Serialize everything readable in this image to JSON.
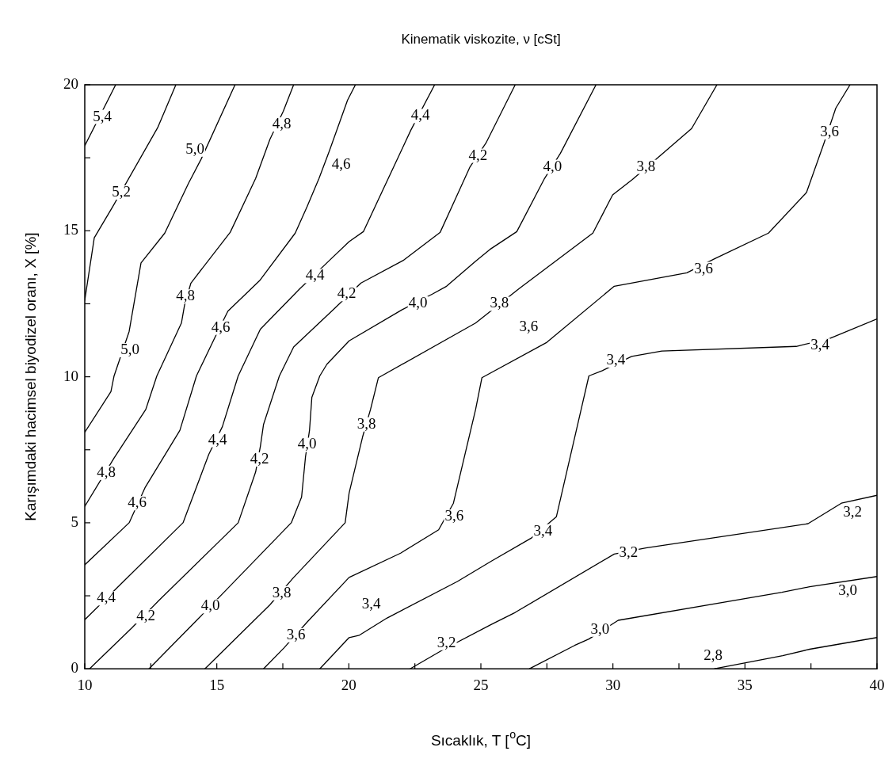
{
  "chart_data": {
    "type": "line",
    "title": "Kinematik viskozite, ν [cSt]",
    "xlabel": "Sıcaklık, T [$^{o}$C]",
    "ylabel": "Karışımdaki hacimsel biyodizel oranı, X [%]",
    "xlim": [
      10,
      40
    ],
    "ylim": [
      0,
      20
    ],
    "xticks": [
      10,
      {
        "value": 12.5,
        "label": null
      },
      15,
      {
        "value": 17.5,
        "label": null
      },
      20,
      {
        "value": 22.5,
        "label": null
      },
      25,
      {
        "value": 27.5,
        "label": null
      },
      30,
      {
        "value": 32.5,
        "label": null
      },
      35,
      {
        "value": 37.5,
        "label": null
      },
      40
    ],
    "yticks": [
      0,
      {
        "value": 2.5,
        "label": null
      },
      5,
      {
        "value": 7.5,
        "label": null
      },
      10,
      {
        "value": 12.5,
        "label": null
      },
      15,
      {
        "value": 17.5,
        "label": null
      },
      20
    ],
    "series": [
      {
        "color": "#000000",
        "x": [
          10,
          11.17
        ],
        "values": [
          17.91,
          20
        ]
      },
      {
        "color": "#000000",
        "x": [
          10,
          10.36,
          11.08,
          12.76,
          13.45
        ],
        "values": [
          12.62,
          14.76,
          15.86,
          18.53,
          20
        ]
      },
      {
        "color": "#000000",
        "x": [
          10,
          10.99,
          11.11,
          11.68,
          12.13,
          13.03,
          13.93,
          14.41,
          15.69
        ],
        "values": [
          8.1,
          9.49,
          10.03,
          11.55,
          13.9,
          14.92,
          16.63,
          17.46,
          20
        ]
      },
      {
        "color": "#000000",
        "x": [
          10,
          11.11,
          12.31,
          12.73,
          13.66,
          13.78,
          14.02,
          15.51,
          16.47,
          17.01,
          17.52,
          17.91
        ],
        "values": [
          5.56,
          7.22,
          8.88,
          10.03,
          11.84,
          12.46,
          13.21,
          14.95,
          16.79,
          18.13,
          19.1,
          20
        ]
      },
      {
        "color": "#000000",
        "x": [
          10,
          11.68,
          12.28,
          13.6,
          14.23,
          14.91,
          15.42,
          16.62,
          17.97,
          18.42,
          18.87,
          19.26,
          19.95,
          20.25
        ],
        "values": [
          3.56,
          5.0,
          6.2,
          8.16,
          10.03,
          11.31,
          12.25,
          13.29,
          14.92,
          15.83,
          16.79,
          17.73,
          19.47,
          20
        ]
      },
      {
        "color": "#000000",
        "x": [
          10,
          11.32,
          13.72,
          14.7,
          15.21,
          15.81,
          16.65,
          18.15,
          19.26,
          20.01,
          20.55,
          22.35,
          23.25
        ],
        "values": [
          1.68,
          2.86,
          5.0,
          7.35,
          8.29,
          10.03,
          11.63,
          13.02,
          13.98,
          14.63,
          14.97,
          18.45,
          20
        ]
      },
      {
        "color": "#000000",
        "x": [
          10.18,
          11.77,
          12.82,
          15.81,
          16.47,
          16.65,
          16.77,
          17.37,
          17.91,
          19.47,
          20.46,
          22.05,
          23.46,
          24.59,
          25.19,
          26.3
        ],
        "values": [
          0,
          1.39,
          2.35,
          5.0,
          6.74,
          7.62,
          8.37,
          10.03,
          11.02,
          12.35,
          13.21,
          13.98,
          14.95,
          17.19,
          18.0,
          20
        ]
      },
      {
        "color": "#000000",
        "x": [
          12.43,
          14.26,
          15.27,
          17.82,
          18.21,
          18.36,
          18.51,
          18.6,
          18.9,
          19.17,
          20.01,
          22.02,
          23.16,
          23.7,
          24.8,
          25.34,
          26.36,
          27.41,
          28.01,
          29.36
        ],
        "values": [
          0,
          1.68,
          2.62,
          5.0,
          5.88,
          7.27,
          8.16,
          9.3,
          10.03,
          10.43,
          11.23,
          12.3,
          12.83,
          13.1,
          13.96,
          14.36,
          14.97,
          16.79,
          17.65,
          20
        ]
      },
      {
        "color": "#000000",
        "x": [
          14.55,
          17.01,
          17.91,
          19.86,
          20.01,
          20.52,
          20.82,
          21.12,
          24.8,
          26.45,
          29.24,
          29.99,
          30.74,
          31.79,
          32.98,
          33.94
        ],
        "values": [
          0,
          2.19,
          3.13,
          5.0,
          6.02,
          7.94,
          8.88,
          9.97,
          11.84,
          13.02,
          14.92,
          16.23,
          16.76,
          17.57,
          18.5,
          20
        ]
      },
      {
        "color": "#000000",
        "x": [
          16.77,
          17.55,
          18.42,
          20.01,
          21.96,
          23.4,
          23.96,
          24.8,
          25.04,
          27.5,
          30.05,
          32.8,
          33.85,
          35.89,
          37.33,
          37.99,
          38.44,
          38.98
        ],
        "values": [
          0,
          0.72,
          1.6,
          3.13,
          3.96,
          4.76,
          5.67,
          8.88,
          9.97,
          11.18,
          13.1,
          13.56,
          14.04,
          14.92,
          16.31,
          17.99,
          19.2,
          20
        ]
      },
      {
        "color": "#000000",
        "x": [
          18.9,
          20.01,
          20.4,
          21.45,
          24.11,
          25.4,
          26.9,
          27.86,
          29.09,
          29.6,
          30.71,
          31.85,
          36.94,
          38.2,
          40
        ],
        "values": [
          0,
          1.07,
          1.15,
          1.74,
          2.99,
          3.69,
          4.47,
          5.21,
          10.03,
          10.21,
          10.7,
          10.88,
          11.04,
          11.31,
          11.98
        ]
      },
      {
        "color": "#000000",
        "x": [
          22.32,
          23.6,
          25.4,
          26.3,
          30.05,
          31.25,
          37.39,
          38.65,
          40
        ],
        "values": [
          0,
          0.67,
          1.52,
          1.93,
          3.93,
          4.14,
          4.97,
          5.67,
          5.94
        ]
      },
      {
        "color": "#000000",
        "x": [
          26.84,
          28.55,
          29.09,
          30.2,
          36.4,
          37.45,
          40
        ],
        "values": [
          0,
          0.8,
          1.02,
          1.66,
          2.62,
          2.81,
          3.16
        ]
      },
      {
        "color": "#000000",
        "x": [
          33.85,
          36.43,
          37.45,
          40
        ],
        "values": [
          0,
          0.45,
          0.67,
          1.07
        ]
      }
    ],
    "annotations": [
      {
        "text": "5,4",
        "x": 10.66,
        "y": 18.9
      },
      {
        "text": "5,2",
        "x": 11.38,
        "y": 16.31
      },
      {
        "text": "5,0",
        "x": 14.17,
        "y": 17.78
      },
      {
        "text": "4,8",
        "x": 17.46,
        "y": 18.64
      },
      {
        "text": "4,6",
        "x": 19.71,
        "y": 17.25
      },
      {
        "text": "4,4",
        "x": 22.71,
        "y": 18.93
      },
      {
        "text": "4,2",
        "x": 24.89,
        "y": 17.57
      },
      {
        "text": "4,0",
        "x": 27.71,
        "y": 17.19
      },
      {
        "text": "3,8",
        "x": 31.25,
        "y": 17.19
      },
      {
        "text": "3,6",
        "x": 38.2,
        "y": 18.37
      },
      {
        "text": "4,8",
        "x": 13.81,
        "y": 12.75
      },
      {
        "text": "4,6",
        "x": 15.15,
        "y": 11.68
      },
      {
        "text": "4,4",
        "x": 18.72,
        "y": 13.45
      },
      {
        "text": "4,2",
        "x": 19.92,
        "y": 12.83
      },
      {
        "text": "4,0",
        "x": 22.62,
        "y": 12.51
      },
      {
        "text": "3,8",
        "x": 25.7,
        "y": 12.5
      },
      {
        "text": "3,6",
        "x": 33.43,
        "y": 13.69
      },
      {
        "text": "5,0",
        "x": 11.71,
        "y": 10.91
      },
      {
        "text": "3,6",
        "x": 26.81,
        "y": 11.71
      },
      {
        "text": "3,4",
        "x": 30.11,
        "y": 10.56
      },
      {
        "text": "3,4",
        "x": 37.84,
        "y": 11.07
      },
      {
        "text": "3,8",
        "x": 20.67,
        "y": 8.37
      },
      {
        "text": "4,0",
        "x": 18.42,
        "y": 7.67
      },
      {
        "text": "4,4",
        "x": 15.03,
        "y": 7.83
      },
      {
        "text": "4,2",
        "x": 16.62,
        "y": 7.17
      },
      {
        "text": "4,8",
        "x": 10.81,
        "y": 6.71
      },
      {
        "text": "4,6",
        "x": 11.98,
        "y": 5.67
      },
      {
        "text": "3,6",
        "x": 23.99,
        "y": 5.21
      },
      {
        "text": "3,4",
        "x": 27.35,
        "y": 4.71
      },
      {
        "text": "3,2",
        "x": 39.07,
        "y": 5.35
      },
      {
        "text": "3,2",
        "x": 30.59,
        "y": 3.96
      },
      {
        "text": "4,4",
        "x": 10.81,
        "y": 2.41
      },
      {
        "text": "4,2",
        "x": 12.31,
        "y": 1.79
      },
      {
        "text": "4,0",
        "x": 14.76,
        "y": 2.14
      },
      {
        "text": "3,8",
        "x": 17.46,
        "y": 2.59
      },
      {
        "text": "3,6",
        "x": 18.0,
        "y": 1.15
      },
      {
        "text": "3,4",
        "x": 20.85,
        "y": 2.19
      },
      {
        "text": "3,2",
        "x": 23.7,
        "y": 0.88
      },
      {
        "text": "3,0",
        "x": 29.51,
        "y": 1.34
      },
      {
        "text": "3,0",
        "x": 38.89,
        "y": 2.67
      },
      {
        "text": "2,8",
        "x": 33.79,
        "y": 0.45
      }
    ]
  }
}
